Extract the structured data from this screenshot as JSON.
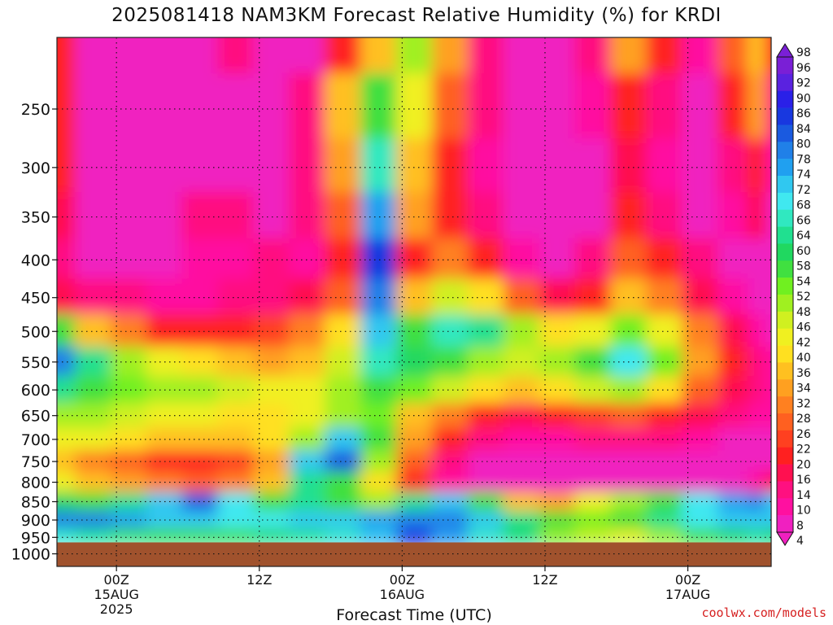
{
  "title": "2025081418 NAM3KM Forecast Relative Humidity (%) for KRDI",
  "credit": "coolwx.com/models",
  "chart_data": {
    "type": "heatmap",
    "title": "2025081418 NAM3KM Forecast Relative Humidity (%) for KRDI",
    "xlabel": "Forecast Time (UTC)",
    "ylabel": "",
    "y_scale": "log-pressure",
    "y_inverted": true,
    "yrange_hPa": [
      1040,
      200
    ],
    "y_ticks": [
      250,
      300,
      350,
      400,
      450,
      500,
      550,
      600,
      650,
      700,
      750,
      800,
      850,
      900,
      950,
      1000
    ],
    "xrange_hours": [
      -5,
      55
    ],
    "x_ticks": [
      {
        "hour": 0,
        "lines": [
          "00Z",
          "15AUG",
          "2025"
        ]
      },
      {
        "hour": 12,
        "lines": [
          "12Z"
        ]
      },
      {
        "hour": 24,
        "lines": [
          "00Z",
          "16AUG"
        ]
      },
      {
        "hour": 36,
        "lines": [
          "12Z"
        ]
      },
      {
        "hour": 48,
        "lines": [
          "00Z",
          "17AUG"
        ]
      }
    ],
    "grid": "dotted",
    "ground_below_hPa": 965,
    "colorbar": {
      "levels": [
        98,
        96,
        92,
        90,
        86,
        84,
        80,
        78,
        74,
        72,
        68,
        66,
        64,
        60,
        58,
        54,
        52,
        48,
        46,
        42,
        40,
        36,
        34,
        32,
        28,
        26,
        22,
        20,
        16,
        14,
        10,
        8,
        4
      ],
      "colors": [
        "#7a1fd6",
        "#5a22e0",
        "#2a20e8",
        "#1838e0",
        "#1a5ae0",
        "#2080e8",
        "#20a0f0",
        "#30c8f0",
        "#40e8f0",
        "#30e8c0",
        "#20e090",
        "#20d860",
        "#40e040",
        "#70f020",
        "#a0f020",
        "#d0f020",
        "#f0f020",
        "#ffe020",
        "#ffc020",
        "#ffa020",
        "#ff8020",
        "#ff6020",
        "#ff4020",
        "#ff2020",
        "#ff1050",
        "#ff1080",
        "#ff10a0",
        "#f020c0"
      ]
    },
    "rh_rows": [
      {
        "p": 200,
        "values": [
          30,
          18,
          8,
          8,
          14,
          22,
          10,
          14,
          30,
          45,
          55,
          40,
          22,
          10,
          14,
          24,
          40,
          30,
          20,
          35,
          45,
          30
        ]
      },
      {
        "p": 250,
        "values": [
          28,
          14,
          8,
          10,
          14,
          18,
          12,
          22,
          45,
          60,
          50,
          35,
          22,
          14,
          10,
          20,
          30,
          24,
          18,
          28,
          40,
          24
        ]
      },
      {
        "p": 300,
        "values": [
          30,
          12,
          8,
          10,
          18,
          16,
          14,
          25,
          40,
          70,
          45,
          30,
          20,
          12,
          8,
          14,
          26,
          20,
          16,
          24,
          30,
          20
        ]
      },
      {
        "p": 350,
        "values": [
          26,
          16,
          12,
          14,
          22,
          22,
          18,
          22,
          35,
          78,
          40,
          30,
          24,
          16,
          12,
          18,
          30,
          24,
          18,
          20,
          26,
          18
        ]
      },
      {
        "p": 400,
        "values": [
          22,
          18,
          16,
          18,
          20,
          20,
          22,
          20,
          30,
          88,
          30,
          36,
          30,
          20,
          18,
          24,
          34,
          28,
          22,
          18,
          16,
          14
        ]
      },
      {
        "p": 450,
        "values": [
          26,
          24,
          22,
          20,
          20,
          22,
          24,
          26,
          34,
          82,
          45,
          52,
          46,
          34,
          26,
          30,
          42,
          36,
          26,
          20,
          16,
          14
        ]
      },
      {
        "p": 500,
        "values": [
          62,
          44,
          36,
          30,
          28,
          30,
          32,
          36,
          46,
          74,
          62,
          70,
          66,
          56,
          46,
          50,
          58,
          50,
          36,
          26,
          20,
          18
        ]
      },
      {
        "p": 550,
        "values": [
          80,
          66,
          56,
          50,
          46,
          42,
          40,
          44,
          52,
          68,
          64,
          60,
          56,
          52,
          56,
          62,
          72,
          58,
          40,
          28,
          22,
          20
        ]
      },
      {
        "p": 600,
        "values": [
          66,
          62,
          58,
          56,
          54,
          52,
          48,
          50,
          56,
          62,
          58,
          52,
          46,
          42,
          46,
          52,
          56,
          46,
          34,
          26,
          22,
          20
        ]
      },
      {
        "p": 650,
        "values": [
          56,
          54,
          52,
          50,
          48,
          46,
          46,
          48,
          54,
          58,
          44,
          36,
          30,
          26,
          28,
          32,
          34,
          30,
          26,
          22,
          20,
          20
        ]
      },
      {
        "p": 700,
        "values": [
          50,
          48,
          46,
          44,
          42,
          42,
          46,
          56,
          76,
          62,
          40,
          30,
          24,
          20,
          20,
          22,
          24,
          22,
          20,
          18,
          18,
          18
        ]
      },
      {
        "p": 750,
        "values": [
          42,
          38,
          34,
          30,
          30,
          32,
          40,
          74,
          84,
          56,
          34,
          24,
          18,
          14,
          14,
          16,
          18,
          18,
          16,
          16,
          16,
          16
        ]
      },
      {
        "p": 800,
        "values": [
          50,
          44,
          40,
          36,
          34,
          36,
          44,
          66,
          62,
          46,
          30,
          20,
          14,
          10,
          10,
          12,
          14,
          16,
          16,
          18,
          20,
          26
        ]
      },
      {
        "p": 850,
        "values": [
          64,
          62,
          66,
          76,
          84,
          72,
          62,
          66,
          60,
          56,
          66,
          74,
          60,
          44,
          40,
          48,
          56,
          62,
          72,
          78,
          80,
          76
        ]
      },
      {
        "p": 900,
        "values": [
          82,
          80,
          78,
          76,
          74,
          72,
          72,
          74,
          76,
          78,
          82,
          80,
          74,
          66,
          60,
          58,
          60,
          66,
          72,
          74,
          76,
          74
        ]
      },
      {
        "p": 950,
        "values": [
          70,
          66,
          62,
          60,
          60,
          62,
          64,
          66,
          70,
          74,
          88,
          78,
          70,
          64,
          56,
          52,
          50,
          54,
          60,
          64,
          66,
          64
        ]
      },
      {
        "p": 965,
        "values": [
          72,
          70,
          68,
          66,
          66,
          66,
          68,
          70,
          74,
          78,
          90,
          80,
          74,
          68,
          62,
          58,
          56,
          58,
          62,
          66,
          68,
          66
        ]
      }
    ],
    "rh_hours": [
      -5,
      -2,
      1,
      4,
      7,
      10,
      13,
      16,
      19,
      22,
      25,
      28,
      31,
      34,
      37,
      40,
      43,
      46,
      49,
      52,
      54,
      55
    ]
  }
}
